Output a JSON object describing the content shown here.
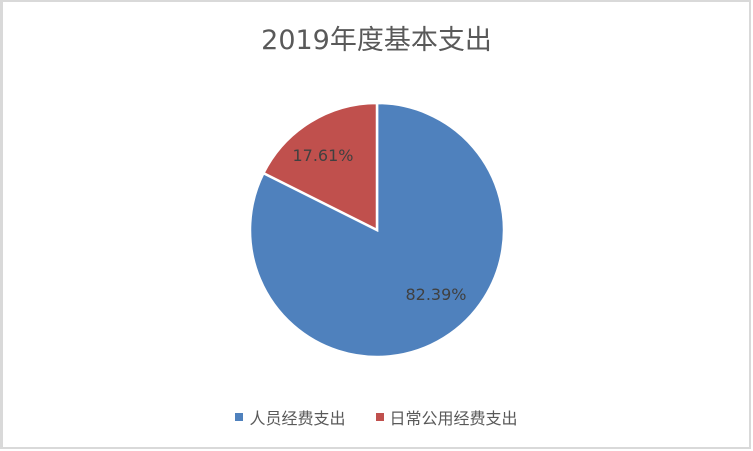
{
  "title": "2019年度基本支出",
  "chart_data": {
    "type": "pie",
    "title": "2019年度基本支出",
    "categories": [
      "人员经费支出",
      "日常公用经费支出"
    ],
    "values": [
      82.39,
      17.61
    ],
    "unit": "%",
    "data_labels": [
      "82.39%",
      "17.61%"
    ],
    "colors": [
      "#4f81bd",
      "#c0504d"
    ],
    "legend_position": "bottom"
  },
  "legend": {
    "items": [
      {
        "label": "人员经费支出",
        "color": "#4f81bd"
      },
      {
        "label": "日常公用经费支出",
        "color": "#c0504d"
      }
    ]
  }
}
